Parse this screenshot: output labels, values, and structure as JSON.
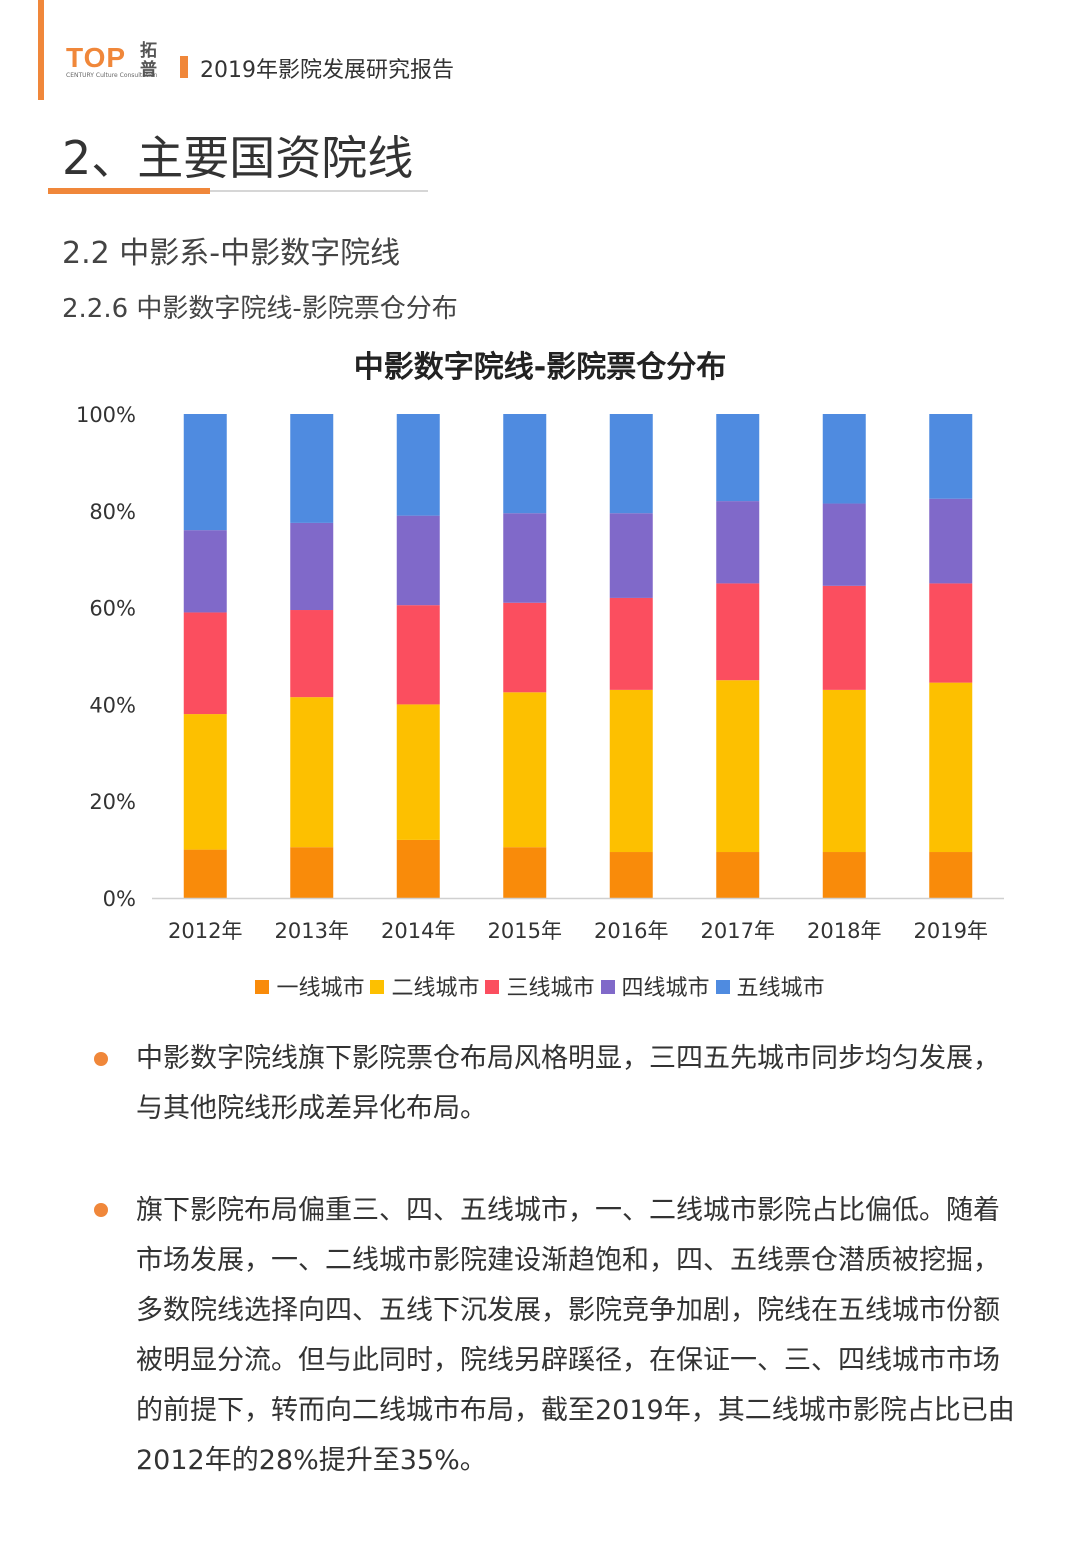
{
  "header": {
    "logo_text": "TOP",
    "logo_subtitle": "CENTURY Culture Consultation",
    "logo_cn": "拓普",
    "report_title": "2019年影院发展研究报告"
  },
  "section": {
    "title": "2、主要国资院线",
    "subtitle": "2.2 中影系-中影数字院线",
    "subsubtitle": "2.2.6 中影数字院线-影院票仓分布"
  },
  "chart_data": {
    "type": "bar",
    "stacked": true,
    "percent": true,
    "title": "中影数字院线-影院票仓分布",
    "categories": [
      "2012年",
      "2013年",
      "2014年",
      "2015年",
      "2016年",
      "2017年",
      "2018年",
      "2019年"
    ],
    "y_ticks": [
      "0%",
      "20%",
      "40%",
      "60%",
      "80%",
      "100%"
    ],
    "ylim": [
      0,
      100
    ],
    "legend_position": "bottom",
    "series": [
      {
        "name": "一线城市",
        "color": "#f98b0a",
        "values": [
          10,
          10.5,
          12,
          10.5,
          9.5,
          9.5,
          9.5,
          9.5
        ]
      },
      {
        "name": "二线城市",
        "color": "#fdc000",
        "values": [
          28,
          31,
          28,
          32,
          33.5,
          35.5,
          33.5,
          35
        ]
      },
      {
        "name": "三线城市",
        "color": "#fb4e5f",
        "values": [
          21,
          18,
          20.5,
          18.5,
          19,
          20,
          21.5,
          20.5
        ]
      },
      {
        "name": "四线城市",
        "color": "#8069c9",
        "values": [
          17,
          18,
          18.5,
          18.5,
          17.5,
          17,
          17,
          17.5
        ]
      },
      {
        "name": "五线城市",
        "color": "#4f8be0",
        "values": [
          24,
          22.5,
          21,
          20.5,
          20.5,
          18,
          18.5,
          17.5
        ]
      }
    ]
  },
  "bullets": [
    "中影数字院线旗下影院票仓布局风格明显，三四五先城市同步均匀发展，与其他院线形成差异化布局。",
    "旗下影院布局偏重三、四、五线城市，一、二线城市影院占比偏低。随着市场发展，一、二线城市影院建设渐趋饱和，四、五线票仓潜质被挖掘，多数院线选择向四、五线下沉发展，影院竞争加剧，院线在五线城市份额被明显分流。但与此同时，院线另辟蹊径，在保证一、三、四线城市市场的前提下，转而向二线城市布局，截至2019年，其二线城市影院占比已由2012年的28%提升至35%。"
  ],
  "colors": {
    "accent": "#f0873a"
  }
}
